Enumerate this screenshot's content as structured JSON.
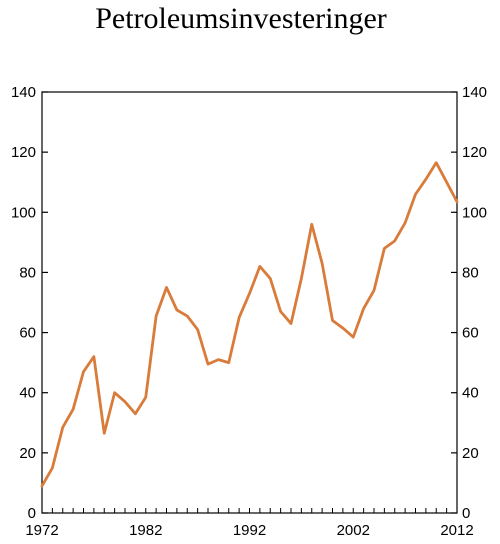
{
  "chart_data": {
    "type": "line",
    "title": "Petroleumsinvesteringer",
    "xlabel": "",
    "ylabel": "",
    "xlim": [
      1972,
      2012
    ],
    "ylim": [
      0,
      140
    ],
    "x_ticks": [
      1972,
      1982,
      1992,
      2002,
      2012
    ],
    "y_ticks": [
      0,
      20,
      40,
      60,
      80,
      100,
      120,
      140
    ],
    "y_ticks_right": [
      0,
      20,
      40,
      60,
      80,
      100,
      120,
      140
    ],
    "grid": false,
    "line_color": "#d97b3a",
    "series": [
      {
        "x": [
          1972,
          1973,
          1974,
          1975,
          1976,
          1977,
          1978,
          1979,
          1980,
          1981,
          1982,
          1983,
          1984,
          1985,
          1986,
          1987,
          1988,
          1989,
          1990,
          1991,
          1992,
          1993,
          1994,
          1995,
          1996,
          1997,
          1998,
          1999,
          2000,
          2001,
          2002,
          2003,
          2004,
          2005,
          2006,
          2007,
          2008,
          2009,
          2010,
          2011,
          2012
        ],
        "values": [
          9,
          15,
          28.5,
          34.5,
          47,
          52,
          26.5,
          40,
          37,
          33,
          38.5,
          65.5,
          75,
          67.5,
          65.5,
          61,
          49.5,
          51,
          50,
          65,
          73,
          82,
          78,
          67,
          63,
          78,
          96,
          83,
          64,
          61.5,
          58.5,
          68,
          74,
          88,
          90.5,
          96.5,
          106,
          111,
          116.5,
          110,
          103.5
        ]
      }
    ]
  }
}
